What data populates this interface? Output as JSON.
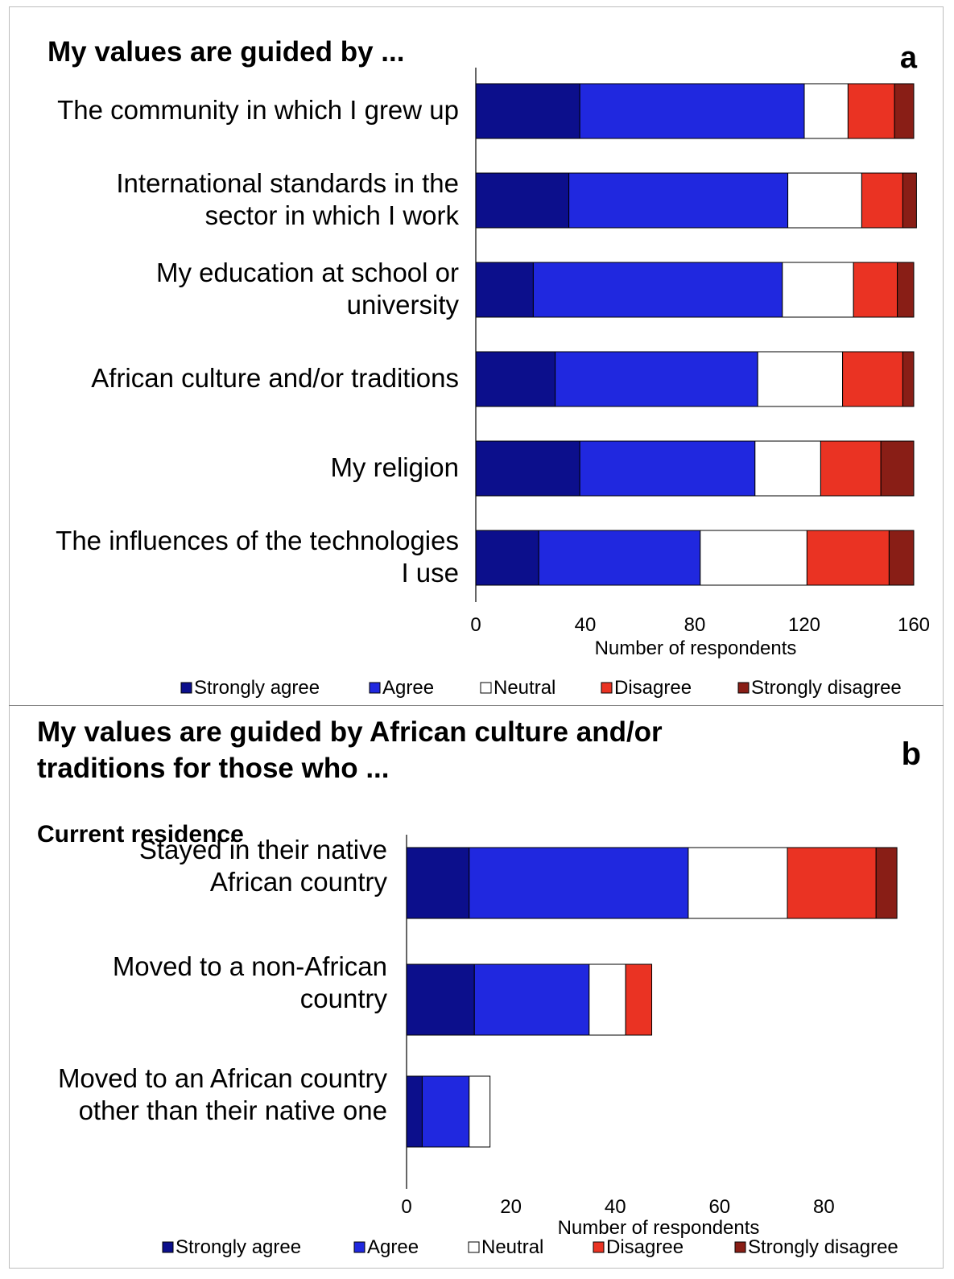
{
  "colors": {
    "Strongly agree": "#0c0f8c",
    "Agree": "#2028df",
    "Neutral": "#ffffff",
    "Disagree": "#ea3323",
    "Strongly disagree": "#891e16"
  },
  "chart_data": [
    {
      "type": "bar",
      "orientation": "horizontal",
      "stacked": true,
      "panel_letter": "a",
      "title": "My values are guided by ...",
      "categories": [
        "The community in which I grew up",
        "International standards in the sector in which I work",
        "My education at school or university",
        "African culture and/or traditions",
        "My religion",
        "The influences of the technologies I use"
      ],
      "category_lines": [
        [
          "The community in which I grew up"
        ],
        [
          "International standards in the",
          "sector in which I work"
        ],
        [
          "My education at school or",
          "university"
        ],
        [
          "African culture and/or traditions"
        ],
        [
          "My religion"
        ],
        [
          "The influences of the technologies",
          "I use"
        ]
      ],
      "series": [
        {
          "name": "Strongly agree",
          "values": [
            38,
            34,
            21,
            29,
            38,
            23
          ]
        },
        {
          "name": "Agree",
          "values": [
            82,
            80,
            91,
            74,
            64,
            59
          ]
        },
        {
          "name": "Neutral",
          "values": [
            16,
            27,
            26,
            31,
            24,
            39
          ]
        },
        {
          "name": "Disagree",
          "values": [
            17,
            15,
            16,
            22,
            22,
            30
          ]
        },
        {
          "name": "Strongly disagree",
          "values": [
            7,
            5,
            6,
            4,
            12,
            9
          ]
        }
      ],
      "xlim": [
        0,
        160
      ],
      "xticks": [
        0,
        40,
        80,
        120,
        160
      ],
      "xlabel": "Number of respondents",
      "legend": [
        "Strongly agree",
        "Agree",
        "Neutral",
        "Disagree",
        "Strongly disagree"
      ],
      "legend_position": "bottom"
    },
    {
      "type": "bar",
      "orientation": "horizontal",
      "stacked": true,
      "panel_letter": "b",
      "title_lines": [
        "My values are guided by African culture and/or",
        "traditions for those who ..."
      ],
      "group_label": "Current residence",
      "categories": [
        "Stayed in their native African country",
        "Moved to a non-African country",
        "Moved to an African country other than their native one"
      ],
      "category_lines": [
        [
          "Stayed in their native",
          "African country"
        ],
        [
          "Moved to a non-African",
          "country"
        ],
        [
          "Moved to an African country",
          "other than their native one"
        ]
      ],
      "series": [
        {
          "name": "Strongly agree",
          "values": [
            12,
            13,
            3
          ]
        },
        {
          "name": "Agree",
          "values": [
            42,
            22,
            9
          ]
        },
        {
          "name": "Neutral",
          "values": [
            19,
            7,
            4
          ]
        },
        {
          "name": "Disagree",
          "values": [
            17,
            5,
            0
          ]
        },
        {
          "name": "Strongly disagree",
          "values": [
            4,
            0,
            0
          ]
        }
      ],
      "xlim": [
        0,
        100
      ],
      "xticks": [
        0,
        20,
        40,
        60,
        80
      ],
      "xlabel": "Number of respondents",
      "legend": [
        "Strongly agree",
        "Agree",
        "Neutral",
        "Disagree",
        "Strongly disagree"
      ],
      "legend_position": "bottom"
    }
  ]
}
